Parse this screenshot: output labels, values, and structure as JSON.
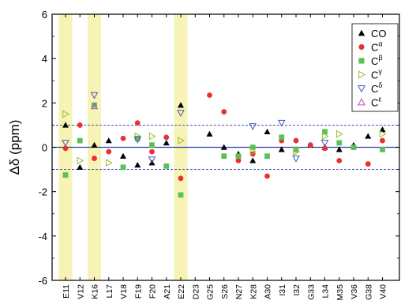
{
  "chart_data": {
    "type": "scatter",
    "title": "",
    "xlabel": "",
    "ylabel": "Δδ (ppm)",
    "ylim": [
      -6,
      6
    ],
    "yticks": [
      -6,
      -4,
      -2,
      0,
      2,
      4,
      6
    ],
    "categories": [
      "E11",
      "V12",
      "K16",
      "L17",
      "V18",
      "F19",
      "F20",
      "A21",
      "E22",
      "D23",
      "G25",
      "S26",
      "N27",
      "K28",
      "A30",
      "I31",
      "I32",
      "G33",
      "L34",
      "M35",
      "V36",
      "G38",
      "V40"
    ],
    "highlighted_categories": [
      "E11",
      "K16",
      "E22"
    ],
    "reference_lines": [
      {
        "y": 0,
        "style": "solid"
      },
      {
        "y": 1,
        "style": "dashed"
      },
      {
        "y": -1,
        "style": "dashed"
      }
    ],
    "legend_position": "top-right",
    "series": [
      {
        "name": "CO",
        "name_base": "CO",
        "name_sup": "",
        "marker": "triangle-up",
        "color": "#000000",
        "values": [
          1.0,
          -0.9,
          0.1,
          0.3,
          -0.4,
          -0.8,
          -0.7,
          0.2,
          1.9,
          null,
          0.6,
          0.0,
          -0.3,
          -0.6,
          0.7,
          -0.1,
          -0.1,
          0.1,
          0.0,
          -0.1,
          0.1,
          0.5,
          0.8
        ]
      },
      {
        "name": "Cα",
        "name_base": "C",
        "name_sup": "α",
        "marker": "circle",
        "color": "#e8322e",
        "values": [
          -0.05,
          1.0,
          -0.5,
          -0.2,
          0.4,
          1.1,
          -0.2,
          0.45,
          -1.4,
          null,
          2.35,
          1.6,
          -0.6,
          -0.3,
          -1.3,
          0.3,
          0.3,
          0.1,
          -0.05,
          -0.6,
          0.0,
          -0.75,
          0.3
        ]
      },
      {
        "name": "Cβ",
        "name_base": "C",
        "name_sup": "β",
        "marker": "square",
        "color": "#5cc05a",
        "values": [
          -1.25,
          0.3,
          1.9,
          null,
          -0.9,
          0.4,
          0.1,
          -0.85,
          -2.15,
          null,
          null,
          -0.4,
          -0.4,
          0.0,
          -0.4,
          0.45,
          -0.1,
          null,
          0.7,
          0.2,
          0.0,
          null,
          -0.1
        ]
      },
      {
        "name": "Cγ",
        "name_base": "C",
        "name_sup": "γ",
        "marker": "triangle-right",
        "color": "#9aba2a",
        "values": [
          1.5,
          -0.6,
          null,
          -0.7,
          null,
          0.5,
          0.5,
          null,
          0.3,
          null,
          null,
          null,
          null,
          -0.2,
          null,
          null,
          -0.2,
          null,
          0.5,
          0.6,
          null,
          null,
          0.6
        ]
      },
      {
        "name": "Cδ",
        "name_base": "C",
        "name_sup": "δ",
        "marker": "triangle-down",
        "color": "#4654bf",
        "values": [
          0.2,
          null,
          2.35,
          null,
          null,
          0.35,
          -0.55,
          null,
          1.55,
          null,
          null,
          null,
          null,
          0.95,
          null,
          1.1,
          -0.5,
          null,
          0.2,
          null,
          null,
          null,
          null
        ]
      },
      {
        "name": "Cε",
        "name_base": "C",
        "name_sup": "ε",
        "marker": "triangle-up-open",
        "color": "#c246c2",
        "values": [
          null,
          null,
          1.85,
          null,
          null,
          null,
          null,
          null,
          null,
          null,
          null,
          null,
          null,
          null,
          null,
          null,
          null,
          null,
          null,
          null,
          null,
          null,
          null
        ]
      }
    ]
  }
}
